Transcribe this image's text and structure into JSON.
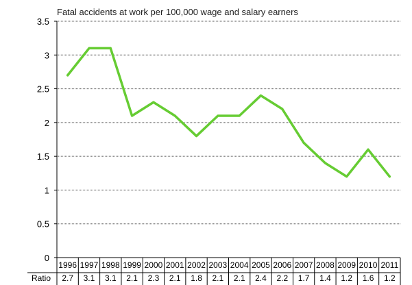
{
  "chart_data": {
    "type": "line",
    "title": "Fatal  accidents at work per  100,000 wage and salary earners",
    "xlabel": "",
    "ylabel": "",
    "ylim": [
      0,
      3.5
    ],
    "yticks": [
      "0",
      "0.5",
      "1",
      "1.5",
      "2",
      "2.5",
      "3",
      "3.5"
    ],
    "grid": "horizontal",
    "categories": [
      "1996",
      "1997",
      "1998",
      "1999",
      "2000",
      "2001",
      "2002",
      "2003",
      "2004",
      "2005",
      "2006",
      "2007",
      "2008",
      "2009",
      "2010",
      "2011"
    ],
    "series": [
      {
        "values": [
          2.7,
          3.1,
          3.1,
          2.1,
          2.3,
          2.1,
          1.8,
          2.1,
          2.1,
          2.4,
          2.2,
          1.7,
          1.4,
          1.2,
          1.6,
          1.2
        ]
      }
    ],
    "table": {
      "row_label": "Ratio",
      "values": [
        "2.7",
        "3.1",
        "3.1",
        "2.1",
        "2.3",
        "2.1",
        "1.8",
        "2.1",
        "2.1",
        "2.4",
        "2.2",
        "1.7",
        "1.4",
        "1.2",
        "1.6",
        "1.2"
      ]
    },
    "colors": {
      "line": "#66cc33",
      "grid": "#555555",
      "axis": "#000000"
    }
  }
}
